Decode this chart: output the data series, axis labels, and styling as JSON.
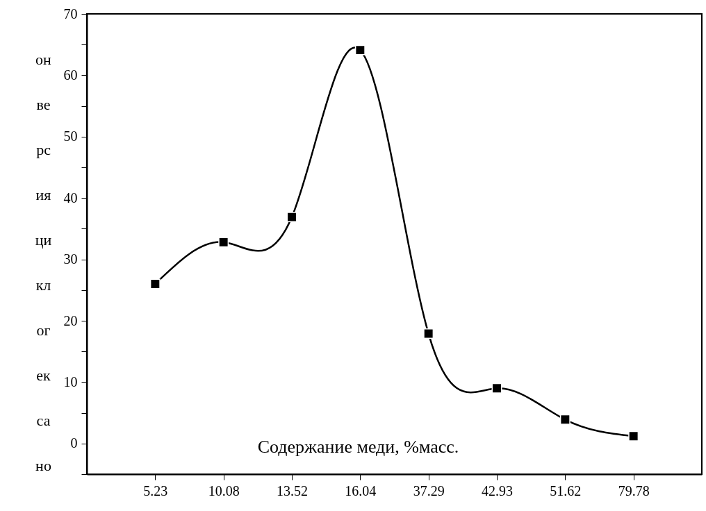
{
  "chart_data": {
    "type": "line",
    "xlabel": "Содержание меди, %масс.",
    "ylabel": "онверсияциклогексано",
    "categories": [
      "5.23",
      "10.08",
      "13.52",
      "16.04",
      "37.29",
      "42.93",
      "51.62",
      "79.78"
    ],
    "series": [
      {
        "color": "#000000",
        "values": [
          26,
          32.8,
          36.9,
          64.1,
          17.9,
          9,
          3.9,
          1.2
        ]
      }
    ],
    "ylim": [
      -5,
      70
    ],
    "yticks": [
      {
        "value": -5,
        "label": null
      },
      0,
      {
        "value": 5,
        "label": null
      },
      10,
      {
        "value": 15,
        "label": null
      },
      20,
      {
        "value": 25,
        "label": null
      },
      30,
      {
        "value": 35,
        "label": null
      },
      40,
      {
        "value": 45,
        "label": null
      },
      50,
      {
        "value": 55,
        "label": null
      },
      60,
      {
        "value": 65,
        "label": null
      },
      70
    ],
    "grid": false,
    "marker": "square",
    "line_style": "solid"
  }
}
